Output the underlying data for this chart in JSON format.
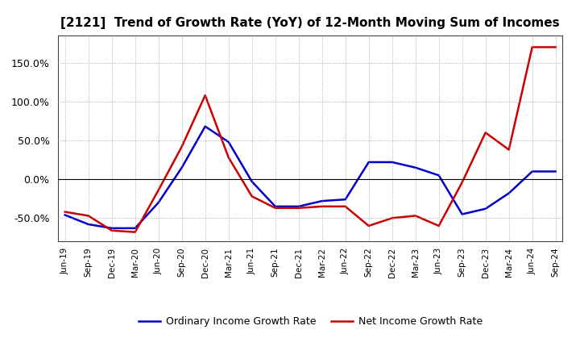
{
  "title": "[2121]  Trend of Growth Rate (YoY) of 12-Month Moving Sum of Incomes",
  "title_fontsize": 11,
  "ylim": [
    -80,
    185
  ],
  "yticks": [
    -50.0,
    0.0,
    50.0,
    100.0,
    150.0
  ],
  "background_color": "#ffffff",
  "plot_bg_color": "#ffffff",
  "grid_color": "#999999",
  "line_color_ordinary": "#0000cc",
  "line_color_net": "#cc0000",
  "legend_ordinary": "Ordinary Income Growth Rate",
  "legend_net": "Net Income Growth Rate",
  "dates": [
    "Jun-19",
    "Sep-19",
    "Dec-19",
    "Mar-20",
    "Jun-20",
    "Sep-20",
    "Dec-20",
    "Mar-21",
    "Jun-21",
    "Sep-21",
    "Dec-21",
    "Mar-22",
    "Jun-22",
    "Sep-22",
    "Dec-22",
    "Mar-23",
    "Jun-23",
    "Sep-23",
    "Dec-23",
    "Mar-24",
    "Jun-24",
    "Sep-24"
  ],
  "ordinary_income_growth": [
    -46,
    -58,
    -63,
    -63,
    -30,
    15,
    68,
    48,
    -3,
    -35,
    -35,
    -28,
    -26,
    22,
    22,
    15,
    5,
    -45,
    -38,
    -18,
    10,
    10
  ],
  "net_income_growth": [
    -42,
    -47,
    -66,
    -68,
    -14,
    42,
    108,
    28,
    -22,
    -37,
    -37,
    -35,
    -35,
    -60,
    -50,
    -47,
    -60,
    -4,
    60,
    38,
    170,
    170
  ]
}
